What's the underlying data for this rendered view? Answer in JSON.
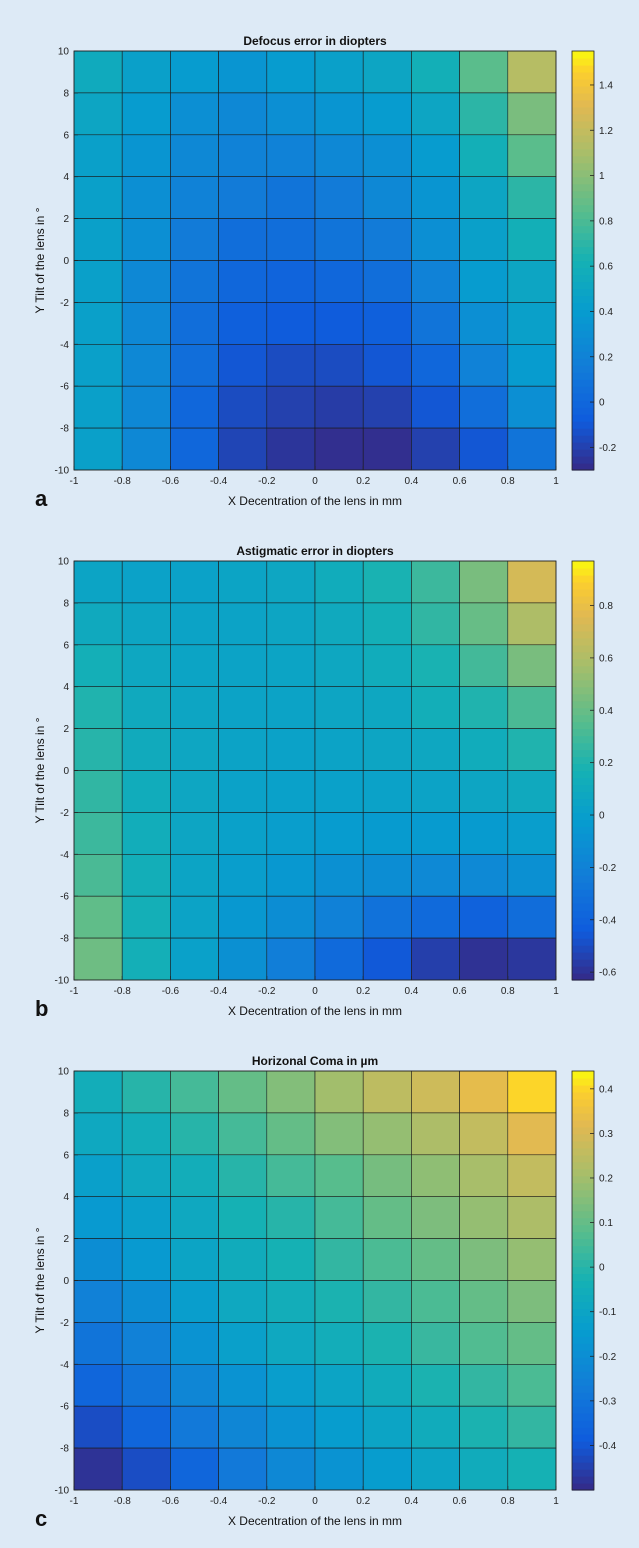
{
  "chart_data": [
    {
      "type": "heatmap",
      "panel_label": "a",
      "title": "Defocus error in diopters",
      "xlabel": "X Decentration of the lens in mm",
      "ylabel": "Y Tilt of the lens in °",
      "xlim": [
        -1,
        1
      ],
      "ylim": [
        -10,
        10
      ],
      "x_ticks": [
        "-1",
        "-0.8",
        "-0.6",
        "-0.4",
        "-0.2",
        "0",
        "0.2",
        "0.4",
        "0.6",
        "0.8",
        "1"
      ],
      "y_ticks": [
        "-10",
        "-8",
        "-6",
        "-4",
        "-2",
        "0",
        "2",
        "4",
        "6",
        "8",
        "10"
      ],
      "x_centers": [
        -0.9,
        -0.7,
        -0.5,
        -0.3,
        -0.1,
        0.1,
        0.3,
        0.5,
        0.7,
        0.9
      ],
      "y_centers": [
        9,
        7,
        5,
        3,
        1,
        -1,
        -3,
        -5,
        -7,
        -9
      ],
      "colorbar": {
        "min": -0.3,
        "max": 1.55,
        "ticks": [
          -0.2,
          0,
          0.2,
          0.4,
          0.6,
          0.8,
          1,
          1.2,
          1.4
        ],
        "tick_labels": [
          "-0.2",
          "0",
          "0.2",
          "0.4",
          "0.6",
          "0.8",
          "1",
          "1.2",
          "1.4"
        ]
      },
      "values": [
        [
          0.55,
          0.45,
          0.4,
          0.35,
          0.4,
          0.45,
          0.5,
          0.6,
          0.85,
          1.15
        ],
        [
          0.5,
          0.4,
          0.3,
          0.25,
          0.3,
          0.35,
          0.4,
          0.5,
          0.7,
          0.95
        ],
        [
          0.45,
          0.35,
          0.25,
          0.2,
          0.2,
          0.25,
          0.3,
          0.4,
          0.6,
          0.85
        ],
        [
          0.45,
          0.3,
          0.2,
          0.15,
          0.1,
          0.15,
          0.25,
          0.35,
          0.5,
          0.7
        ],
        [
          0.45,
          0.3,
          0.15,
          0.05,
          0.05,
          0.1,
          0.15,
          0.3,
          0.45,
          0.6
        ],
        [
          0.45,
          0.25,
          0.1,
          0.0,
          -0.02,
          0.0,
          0.05,
          0.2,
          0.4,
          0.5
        ],
        [
          0.45,
          0.25,
          0.05,
          -0.05,
          -0.08,
          -0.08,
          -0.05,
          0.1,
          0.3,
          0.45
        ],
        [
          0.45,
          0.25,
          0.05,
          -0.1,
          -0.15,
          -0.15,
          -0.1,
          0.0,
          0.2,
          0.4
        ],
        [
          0.45,
          0.25,
          0.0,
          -0.15,
          -0.2,
          -0.22,
          -0.2,
          -0.1,
          0.05,
          0.3
        ],
        [
          0.45,
          0.25,
          0.0,
          -0.18,
          -0.25,
          -0.28,
          -0.28,
          -0.2,
          -0.1,
          0.1
        ]
      ]
    },
    {
      "type": "heatmap",
      "panel_label": "b",
      "title": "Astigmatic error in diopters",
      "xlabel": "X Decentration of the lens in mm",
      "ylabel": "Y Tilt of the lens in °",
      "xlim": [
        -1,
        1
      ],
      "ylim": [
        -10,
        10
      ],
      "x_ticks": [
        "-1",
        "-0.8",
        "-0.6",
        "-0.4",
        "-0.2",
        "0",
        "0.2",
        "0.4",
        "0.6",
        "0.8",
        "1"
      ],
      "y_ticks": [
        "-10",
        "-8",
        "-6",
        "-4",
        "-2",
        "0",
        "2",
        "4",
        "6",
        "8",
        "10"
      ],
      "x_centers": [
        -0.9,
        -0.7,
        -0.5,
        -0.3,
        -0.1,
        0.1,
        0.3,
        0.5,
        0.7,
        0.9
      ],
      "y_centers": [
        9,
        7,
        5,
        3,
        1,
        -1,
        -3,
        -5,
        -7,
        -9
      ],
      "colorbar": {
        "min": -0.63,
        "max": 0.97,
        "ticks": [
          -0.6,
          -0.4,
          -0.2,
          0,
          0.2,
          0.4,
          0.6,
          0.8
        ],
        "tick_labels": [
          "-0.6",
          "-0.4",
          "-0.2",
          "0",
          "0.2",
          "0.4",
          "0.6",
          "0.8"
        ]
      },
      "values": [
        [
          0.05,
          0.03,
          0.03,
          0.05,
          0.07,
          0.12,
          0.18,
          0.28,
          0.45,
          0.72
        ],
        [
          0.1,
          0.06,
          0.04,
          0.04,
          0.06,
          0.1,
          0.15,
          0.25,
          0.4,
          0.6
        ],
        [
          0.15,
          0.08,
          0.05,
          0.04,
          0.05,
          0.08,
          0.12,
          0.18,
          0.3,
          0.45
        ],
        [
          0.2,
          0.1,
          0.06,
          0.04,
          0.04,
          0.06,
          0.08,
          0.14,
          0.2,
          0.32
        ],
        [
          0.22,
          0.11,
          0.07,
          0.04,
          0.03,
          0.04,
          0.06,
          0.08,
          0.12,
          0.2
        ],
        [
          0.25,
          0.12,
          0.07,
          0.03,
          0.02,
          0.02,
          0.03,
          0.04,
          0.06,
          0.1
        ],
        [
          0.28,
          0.13,
          0.06,
          0.02,
          0.0,
          -0.02,
          -0.03,
          -0.03,
          -0.03,
          0.0
        ],
        [
          0.32,
          0.14,
          0.05,
          0.0,
          -0.05,
          -0.1,
          -0.12,
          -0.15,
          -0.15,
          -0.1
        ],
        [
          0.38,
          0.15,
          0.04,
          -0.05,
          -0.12,
          -0.2,
          -0.3,
          -0.35,
          -0.4,
          -0.33
        ],
        [
          0.42,
          0.15,
          0.02,
          -0.1,
          -0.22,
          -0.35,
          -0.45,
          -0.55,
          -0.6,
          -0.58
        ]
      ]
    },
    {
      "type": "heatmap",
      "panel_label": "c",
      "title": "Horizonal Coma in µm",
      "xlabel": "X Decentration of the lens in mm",
      "ylabel": "Y Tilt of the lens in °",
      "xlim": [
        -1,
        1
      ],
      "ylim": [
        -10,
        10
      ],
      "x_ticks": [
        "-1",
        "-0.8",
        "-0.6",
        "-0.4",
        "-0.2",
        "0",
        "0.2",
        "0.4",
        "0.6",
        "0.8",
        "1"
      ],
      "y_ticks": [
        "-10",
        "-8",
        "-6",
        "-4",
        "-2",
        "0",
        "2",
        "4",
        "6",
        "8",
        "10"
      ],
      "x_centers": [
        -0.9,
        -0.7,
        -0.5,
        -0.3,
        -0.1,
        0.1,
        0.3,
        0.5,
        0.7,
        0.9
      ],
      "y_centers": [
        9,
        7,
        5,
        3,
        1,
        -1,
        -3,
        -5,
        -7,
        -9
      ],
      "colorbar": {
        "min": -0.5,
        "max": 0.44,
        "ticks": [
          -0.4,
          -0.3,
          -0.2,
          -0.1,
          0,
          0.1,
          0.2,
          0.3,
          0.4
        ],
        "tick_labels": [
          "-0.4",
          "-0.3",
          "-0.2",
          "-0.1",
          "0",
          "0.1",
          "0.2",
          "0.3",
          "0.4"
        ]
      },
      "values": [
        [
          -0.05,
          0.0,
          0.05,
          0.1,
          0.15,
          0.2,
          0.25,
          0.28,
          0.33,
          0.4
        ],
        [
          -0.08,
          -0.05,
          0.0,
          0.05,
          0.1,
          0.15,
          0.18,
          0.22,
          0.26,
          0.32
        ],
        [
          -0.12,
          -0.08,
          -0.05,
          0.0,
          0.05,
          0.08,
          0.13,
          0.17,
          0.21,
          0.26
        ],
        [
          -0.15,
          -0.12,
          -0.08,
          -0.03,
          0.0,
          0.05,
          0.1,
          0.14,
          0.18,
          0.22
        ],
        [
          -0.2,
          -0.15,
          -0.1,
          -0.06,
          -0.03,
          0.02,
          0.06,
          0.1,
          0.14,
          0.18
        ],
        [
          -0.25,
          -0.2,
          -0.13,
          -0.08,
          -0.05,
          -0.02,
          0.02,
          0.06,
          0.1,
          0.14
        ],
        [
          -0.3,
          -0.25,
          -0.18,
          -0.12,
          -0.08,
          -0.05,
          -0.02,
          0.03,
          0.07,
          0.1
        ],
        [
          -0.35,
          -0.3,
          -0.23,
          -0.18,
          -0.13,
          -0.1,
          -0.06,
          -0.02,
          0.02,
          0.06
        ],
        [
          -0.42,
          -0.35,
          -0.28,
          -0.23,
          -0.18,
          -0.14,
          -0.1,
          -0.06,
          -0.02,
          0.02
        ],
        [
          -0.48,
          -0.42,
          -0.35,
          -0.28,
          -0.22,
          -0.18,
          -0.14,
          -0.1,
          -0.06,
          -0.03
        ]
      ]
    }
  ]
}
